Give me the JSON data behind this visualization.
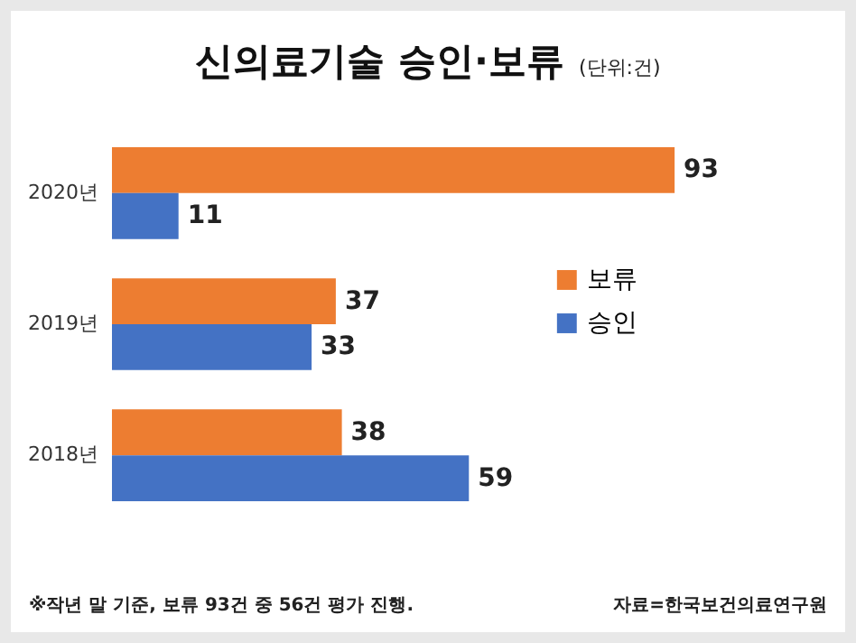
{
  "chart_data": {
    "type": "bar",
    "orientation": "horizontal",
    "title": "신의료기술 승인·보류",
    "subtitle": "(단위:건)",
    "categories": [
      "2020년",
      "2019년",
      "2018년"
    ],
    "series": [
      {
        "name": "보류",
        "color": "#ed7d31",
        "values": [
          93,
          37,
          38
        ]
      },
      {
        "name": "승인",
        "color": "#4472c4",
        "values": [
          11,
          33,
          59
        ]
      }
    ],
    "data_labels": true,
    "legend": "right",
    "annotations": [
      "※작년 말 기준, 보류 93건 중 56건 평가 진행.",
      "자료=한국보건의료연구원"
    ]
  }
}
